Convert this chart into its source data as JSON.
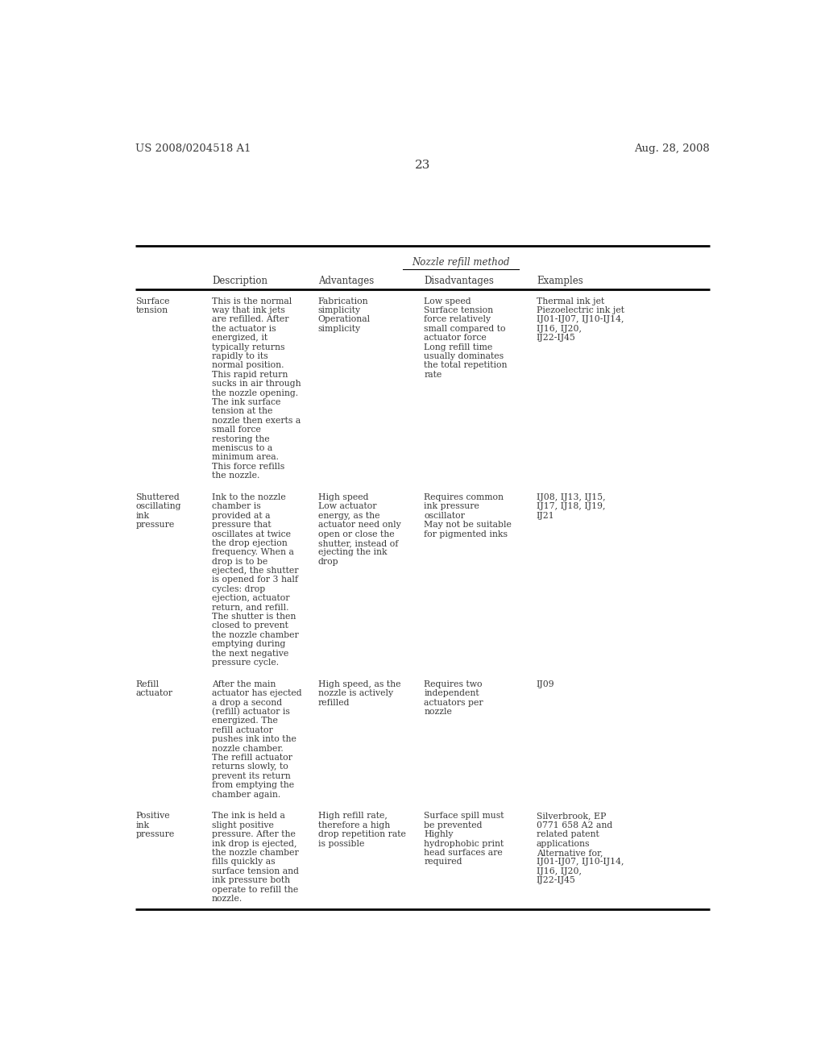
{
  "header_left": "US 2008/0204518 A1",
  "header_right": "Aug. 28, 2008",
  "page_number": "23",
  "table_title": "Nozzle refill method",
  "col_headers": [
    "",
    "Description",
    "Advantages",
    "Disadvantages",
    "Examples"
  ],
  "rows": [
    {
      "label": "Surface\ntension",
      "description": "This is the normal\nway that ink jets\nare refilled. After\nthe actuator is\nenergized, it\ntypically returns\nrapidly to its\nnormal position.\nThis rapid return\nsucks in air through\nthe nozzle opening.\nThe ink surface\ntension at the\nnozzle then exerts a\nsmall force\nrestoring the\nmeniscus to a\nminimum area.\nThis force refills\nthe nozzle.",
      "advantages": "Fabrication\nsimplicity\nOperational\nsimplicity",
      "disadvantages": "Low speed\nSurface tension\nforce relatively\nsmall compared to\nactuator force\nLong refill time\nusually dominates\nthe total repetition\nrate",
      "examples": "Thermal ink jet\nPiezoelectric ink jet\nIJ01-IJ07, IJ10-IJ14,\nIJ16, IJ20,\nIJ22-IJ45"
    },
    {
      "label": "Shuttered\noscillating\nink\npressure",
      "description": "Ink to the nozzle\nchamber is\nprovided at a\npressure that\noscillates at twice\nthe drop ejection\nfrequency. When a\ndrop is to be\nejected, the shutter\nis opened for 3 half\ncycles: drop\nejection, actuator\nreturn, and refill.\nThe shutter is then\nclosed to prevent\nthe nozzle chamber\nemptying during\nthe next negative\npressure cycle.",
      "advantages": "High speed\nLow actuator\nenergy, as the\nactuator need only\nopen or close the\nshutter, instead of\nejecting the ink\ndrop",
      "disadvantages": "Requires common\nink pressure\noscillator\nMay not be suitable\nfor pigmented inks",
      "examples": "IJ08, IJ13, IJ15,\nIJ17, IJ18, IJ19,\nIJ21"
    },
    {
      "label": "Refill\nactuator",
      "description": "After the main\nactuator has ejected\na drop a second\n(refill) actuator is\nenergized. The\nrefill actuator\npushes ink into the\nnozzle chamber.\nThe refill actuator\nreturns slowly, to\nprevent its return\nfrom emptying the\nchamber again.",
      "advantages": "High speed, as the\nnozzle is actively\nrefilled",
      "disadvantages": "Requires two\nindependent\nactuators per\nnozzle",
      "examples": "IJ09"
    },
    {
      "label": "Positive\nink\npressure",
      "description": "The ink is held a\nslight positive\npressure. After the\nink drop is ejected,\nthe nozzle chamber\nfills quickly as\nsurface tension and\nink pressure both\noperate to refill the\nnozzle.",
      "advantages": "High refill rate,\ntherefore a high\ndrop repetition rate\nis possible",
      "disadvantages": "Surface spill must\nbe prevented\nHighly\nhydrophobic print\nhead surfaces are\nrequired",
      "examples": "Silverbrook, EP\n0771 658 A2 and\nrelated patent\napplications\nAlternative for,\nIJ01-IJ07, IJ10-IJ14,\nIJ16, IJ20,\nIJ22-IJ45"
    }
  ],
  "bg_color": "#ffffff",
  "text_color": "#3a3a3a",
  "line_color": "#000000",
  "font_size_header": 9.5,
  "font_size_page": 11,
  "font_size_table_title": 8.5,
  "font_size_col_header": 8.5,
  "font_size_row": 7.8
}
